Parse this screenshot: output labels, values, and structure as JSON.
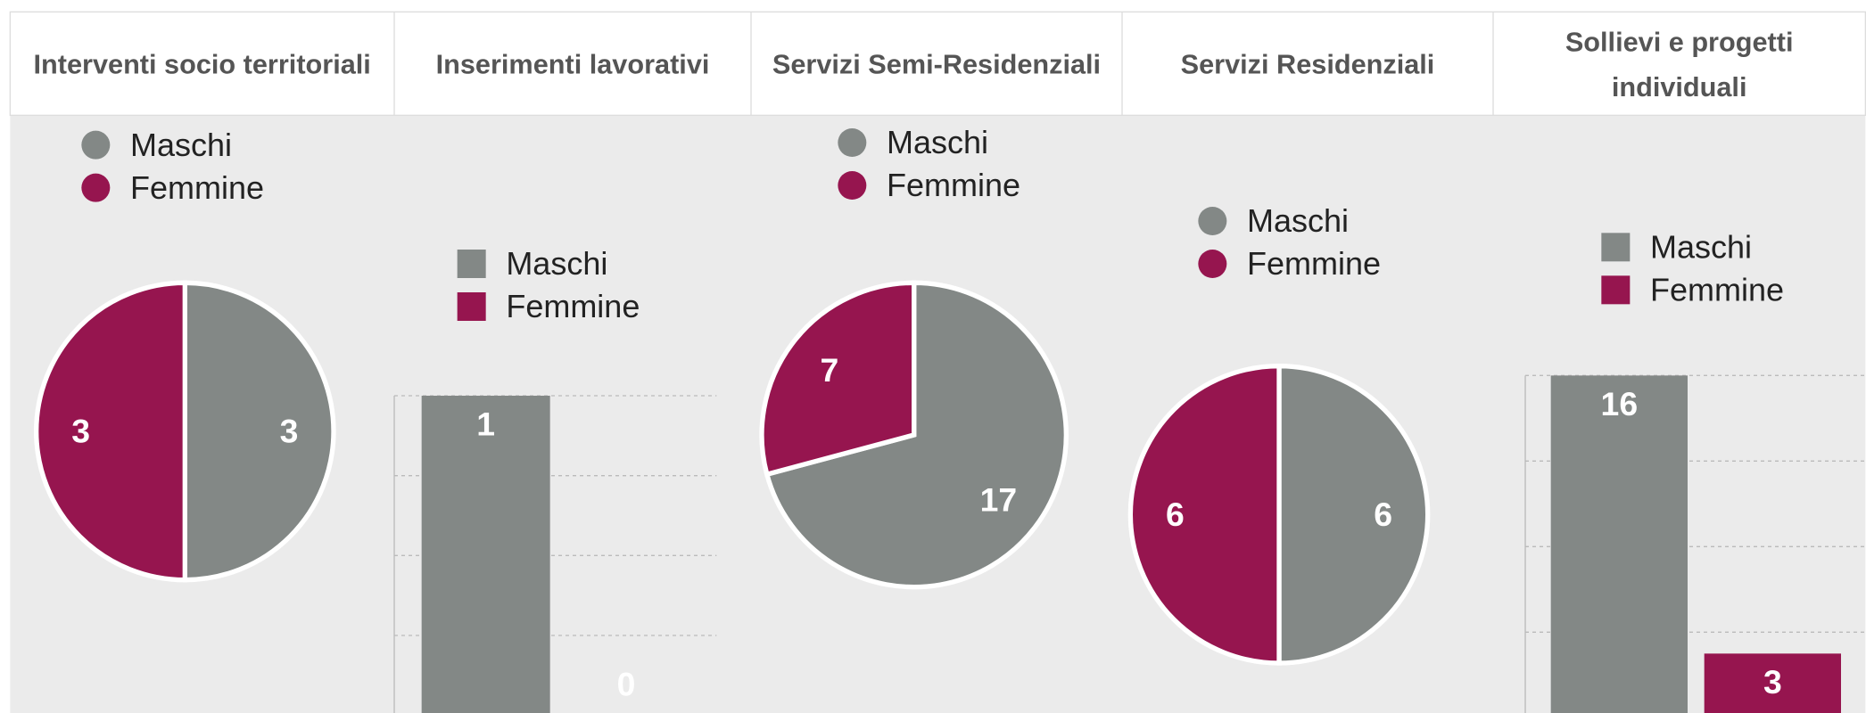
{
  "chart_data": [
    {
      "type": "pie",
      "title": "Interventi socio territoriali",
      "categories": [
        "Maschi",
        "Femmine"
      ],
      "values": [
        3,
        3
      ],
      "colors": [
        "#838886",
        "#96154f"
      ]
    },
    {
      "type": "bar",
      "title": "Inserimenti lavorativi",
      "categories": [
        "Maschi",
        "Femmine"
      ],
      "values": [
        1,
        0
      ],
      "colors": [
        "#838886",
        "#96154f"
      ],
      "ylim": [
        0,
        1
      ],
      "yticks": [
        0,
        0.25,
        0.5,
        0.75,
        1
      ],
      "grid": true
    },
    {
      "type": "pie",
      "title": "Servizi Semi-Residenziali",
      "categories": [
        "Maschi",
        "Femmine"
      ],
      "values": [
        17,
        7
      ],
      "colors": [
        "#838886",
        "#96154f"
      ]
    },
    {
      "type": "pie",
      "title": "Servizi Residenziali",
      "categories": [
        "Maschi",
        "Femmine"
      ],
      "values": [
        6,
        6
      ],
      "colors": [
        "#838886",
        "#96154f"
      ]
    },
    {
      "type": "bar",
      "title": "Sollievi e progetti individuali",
      "categories": [
        "Maschi",
        "Femmine"
      ],
      "values": [
        16,
        3
      ],
      "colors": [
        "#838886",
        "#96154f"
      ],
      "ylim": [
        0,
        16
      ],
      "yticks": [
        0,
        4,
        8,
        12,
        16
      ],
      "grid": true
    }
  ]
}
